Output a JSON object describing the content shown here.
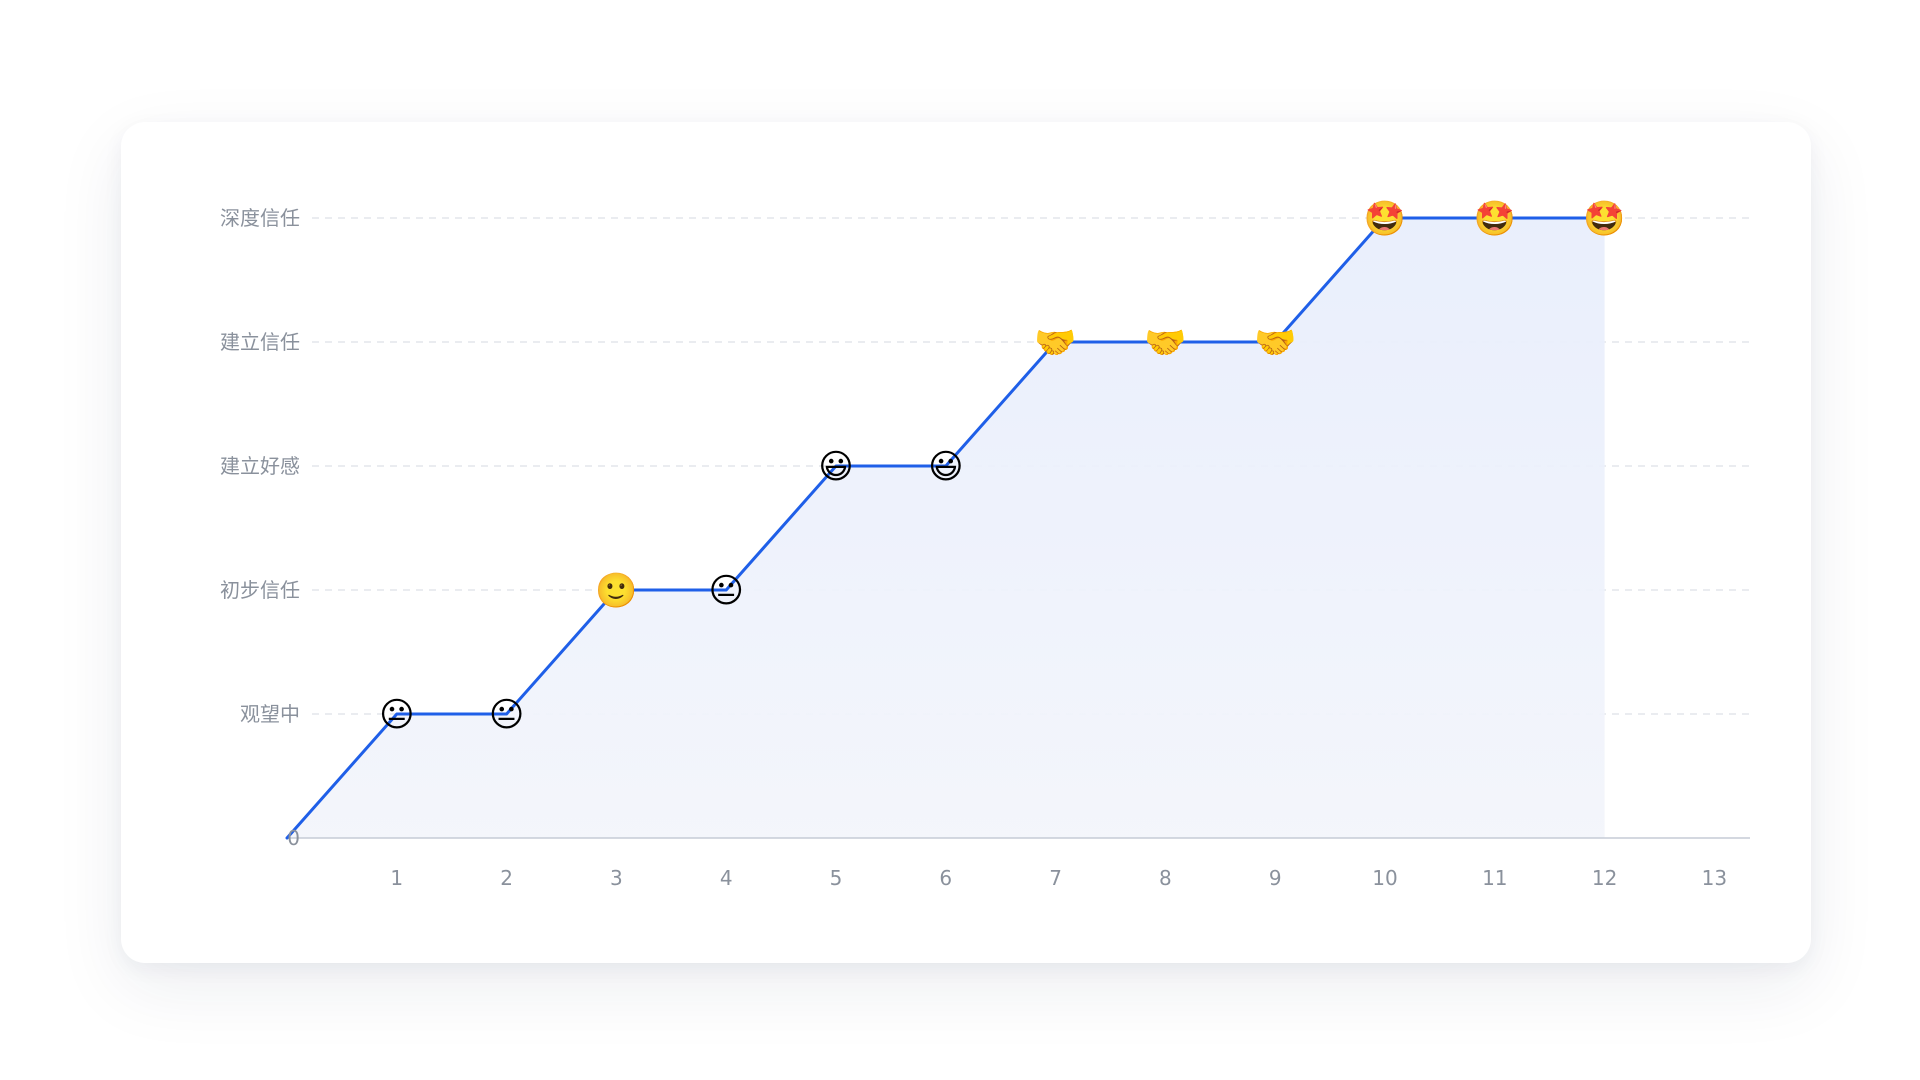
{
  "chart_data": {
    "type": "line",
    "x": [
      0,
      1,
      2,
      3,
      4,
      5,
      6,
      7,
      8,
      9,
      10,
      11,
      12
    ],
    "xticks": [
      "1",
      "2",
      "3",
      "4",
      "5",
      "6",
      "7",
      "8",
      "9",
      "10",
      "11",
      "12",
      "13"
    ],
    "xlim": [
      0,
      13
    ],
    "ylim": [
      0,
      5
    ],
    "yticks": [
      {
        "value": 0,
        "label": "0"
      },
      {
        "value": 1,
        "label": "观望中"
      },
      {
        "value": 2,
        "label": "初步信任"
      },
      {
        "value": 3,
        "label": "建立好感"
      },
      {
        "value": 4,
        "label": "建立信任"
      },
      {
        "value": 5,
        "label": "深度信任"
      }
    ],
    "series": [
      {
        "values": [
          0,
          1,
          1,
          2,
          2,
          3,
          3,
          4,
          4,
          4,
          5,
          5,
          5
        ],
        "markers": [
          "",
          "neutral-face",
          "neutral-face",
          "slightly-smiling-face",
          "neutral-face",
          "grinning-face",
          "grinning-face",
          "handshake",
          "handshake",
          "handshake",
          "star-struck-face",
          "star-struck-face",
          "star-struck-face"
        ]
      }
    ],
    "grid": "horizontal-dashed",
    "area_fill": true,
    "line_color": "#1f5fe8",
    "fill_color": "#e9efff"
  },
  "marker_glyphs": {
    "neutral-face": "😐",
    "slightly-smiling-face": "🙂",
    "grinning-face": "😃",
    "handshake": "🤝",
    "star-struck-face": "🤩"
  }
}
